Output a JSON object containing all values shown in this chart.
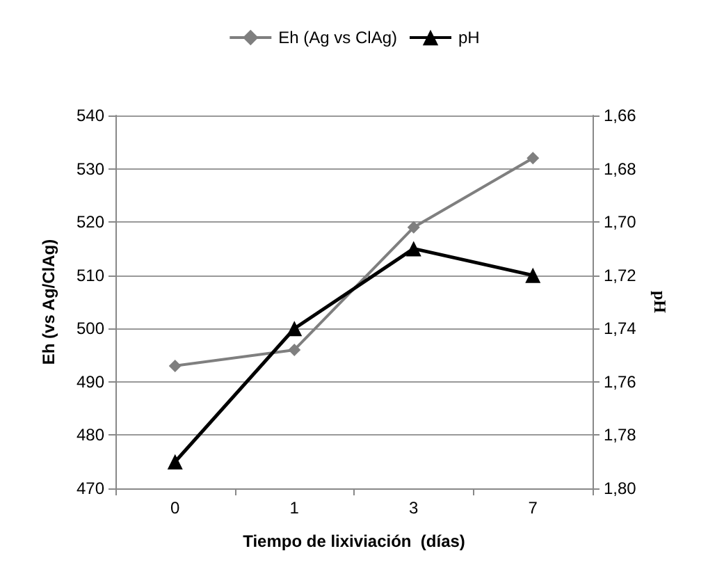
{
  "chart_data": {
    "type": "line",
    "xlabel": "Tiempo de lixiviación  (días)",
    "ylabel": "Eh (vs Ag/ClAg)",
    "y2label": "pH",
    "categories": [
      "0",
      "1",
      "3",
      "7"
    ],
    "series": [
      {
        "name": "Eh (Ag vs ClAg)",
        "color": "#7f7f7f",
        "marker": "diamond",
        "values": [
          493,
          496,
          519,
          532
        ]
      },
      {
        "name": "pH",
        "color": "#000000",
        "marker": "triangle",
        "axis": "y2",
        "values": [
          1.79,
          1.74,
          1.71,
          1.72
        ]
      }
    ],
    "ylim": [
      470,
      540
    ],
    "yticks": [
      470,
      480,
      490,
      500,
      510,
      520,
      530,
      540
    ],
    "y2lim": [
      1.8,
      1.66
    ],
    "y2ticks": [
      {
        "value": 1.8,
        "label": "1,80"
      },
      {
        "value": 1.78,
        "label": "1,78"
      },
      {
        "value": 1.76,
        "label": "1,76"
      },
      {
        "value": 1.74,
        "label": "1,74"
      },
      {
        "value": 1.72,
        "label": "1,72"
      },
      {
        "value": 1.7,
        "label": "1,70"
      },
      {
        "value": 1.68,
        "label": "1,68"
      },
      {
        "value": 1.66,
        "label": "1,66"
      }
    ],
    "grid": "y",
    "legend": "top",
    "line_style": "solid"
  }
}
